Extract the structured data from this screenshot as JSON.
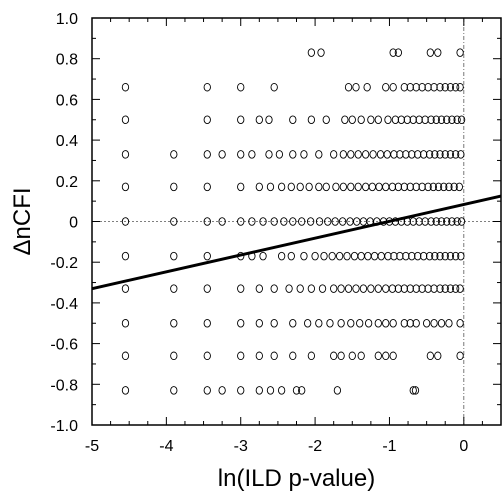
{
  "chart_data": {
    "type": "scatter",
    "xlabel": "ln(ILD p-value)",
    "ylabel": "ΔnCFI",
    "xlim": [
      -5,
      0.5
    ],
    "ylim": [
      -1.0,
      1.0
    ],
    "x_ticks": [
      "-5",
      "-4",
      "-3",
      "-2",
      "-1",
      "0"
    ],
    "y_ticks": [
      "1.0",
      "0.8",
      "0.6",
      "0.4",
      "0.2",
      "0",
      "-0.2",
      "-0.4",
      "-0.6",
      "-0.8",
      "-1.0"
    ],
    "reference_lines": {
      "horizontal_y": 0,
      "vertical_x": 0
    },
    "regression_line": {
      "x": [
        -5,
        0.5
      ],
      "y": [
        -0.33,
        0.125
      ]
    },
    "points": [
      {
        "x": -2.05,
        "y": 0.83
      },
      {
        "x": -1.92,
        "y": 0.83
      },
      {
        "x": -0.95,
        "y": 0.83
      },
      {
        "x": -0.88,
        "y": 0.83
      },
      {
        "x": -0.45,
        "y": 0.83
      },
      {
        "x": -0.35,
        "y": 0.83
      },
      {
        "x": -0.05,
        "y": 0.83
      },
      {
        "x": -4.55,
        "y": 0.66
      },
      {
        "x": -3.45,
        "y": 0.66
      },
      {
        "x": -3.0,
        "y": 0.66
      },
      {
        "x": -2.55,
        "y": 0.66
      },
      {
        "x": -1.55,
        "y": 0.66
      },
      {
        "x": -1.45,
        "y": 0.66
      },
      {
        "x": -1.3,
        "y": 0.66
      },
      {
        "x": -1.05,
        "y": 0.66
      },
      {
        "x": -0.95,
        "y": 0.66
      },
      {
        "x": -0.8,
        "y": 0.66
      },
      {
        "x": -0.72,
        "y": 0.66
      },
      {
        "x": -0.64,
        "y": 0.66
      },
      {
        "x": -0.56,
        "y": 0.66
      },
      {
        "x": -0.48,
        "y": 0.66
      },
      {
        "x": -0.4,
        "y": 0.66
      },
      {
        "x": -0.32,
        "y": 0.66
      },
      {
        "x": -0.25,
        "y": 0.66
      },
      {
        "x": -0.18,
        "y": 0.66
      },
      {
        "x": -0.11,
        "y": 0.66
      },
      {
        "x": -0.05,
        "y": 0.66
      },
      {
        "x": -4.55,
        "y": 0.5
      },
      {
        "x": -3.45,
        "y": 0.5
      },
      {
        "x": -3.0,
        "y": 0.5
      },
      {
        "x": -2.75,
        "y": 0.5
      },
      {
        "x": -2.62,
        "y": 0.5
      },
      {
        "x": -2.3,
        "y": 0.5
      },
      {
        "x": -2.05,
        "y": 0.5
      },
      {
        "x": -1.85,
        "y": 0.5
      },
      {
        "x": -1.6,
        "y": 0.5
      },
      {
        "x": -1.5,
        "y": 0.5
      },
      {
        "x": -1.38,
        "y": 0.5
      },
      {
        "x": -1.25,
        "y": 0.5
      },
      {
        "x": -1.15,
        "y": 0.5
      },
      {
        "x": -1.02,
        "y": 0.5
      },
      {
        "x": -0.92,
        "y": 0.5
      },
      {
        "x": -0.84,
        "y": 0.5
      },
      {
        "x": -0.76,
        "y": 0.5
      },
      {
        "x": -0.68,
        "y": 0.5
      },
      {
        "x": -0.6,
        "y": 0.5
      },
      {
        "x": -0.52,
        "y": 0.5
      },
      {
        "x": -0.44,
        "y": 0.5
      },
      {
        "x": -0.37,
        "y": 0.5
      },
      {
        "x": -0.3,
        "y": 0.5
      },
      {
        "x": -0.23,
        "y": 0.5
      },
      {
        "x": -0.16,
        "y": 0.5
      },
      {
        "x": -0.09,
        "y": 0.5
      },
      {
        "x": -0.03,
        "y": 0.5
      },
      {
        "x": -4.55,
        "y": 0.33
      },
      {
        "x": -3.9,
        "y": 0.33
      },
      {
        "x": -3.45,
        "y": 0.33
      },
      {
        "x": -3.25,
        "y": 0.33
      },
      {
        "x": -3.0,
        "y": 0.33
      },
      {
        "x": -2.85,
        "y": 0.33
      },
      {
        "x": -2.62,
        "y": 0.33
      },
      {
        "x": -2.48,
        "y": 0.33
      },
      {
        "x": -2.3,
        "y": 0.33
      },
      {
        "x": -2.15,
        "y": 0.33
      },
      {
        "x": -1.95,
        "y": 0.33
      },
      {
        "x": -1.75,
        "y": 0.33
      },
      {
        "x": -1.62,
        "y": 0.33
      },
      {
        "x": -1.52,
        "y": 0.33
      },
      {
        "x": -1.42,
        "y": 0.33
      },
      {
        "x": -1.32,
        "y": 0.33
      },
      {
        "x": -1.22,
        "y": 0.33
      },
      {
        "x": -1.12,
        "y": 0.33
      },
      {
        "x": -1.03,
        "y": 0.33
      },
      {
        "x": -0.94,
        "y": 0.33
      },
      {
        "x": -0.86,
        "y": 0.33
      },
      {
        "x": -0.78,
        "y": 0.33
      },
      {
        "x": -0.7,
        "y": 0.33
      },
      {
        "x": -0.62,
        "y": 0.33
      },
      {
        "x": -0.54,
        "y": 0.33
      },
      {
        "x": -0.46,
        "y": 0.33
      },
      {
        "x": -0.39,
        "y": 0.33
      },
      {
        "x": -0.32,
        "y": 0.33
      },
      {
        "x": -0.25,
        "y": 0.33
      },
      {
        "x": -0.18,
        "y": 0.33
      },
      {
        "x": -0.11,
        "y": 0.33
      },
      {
        "x": -0.04,
        "y": 0.33
      },
      {
        "x": -4.55,
        "y": 0.17
      },
      {
        "x": -3.9,
        "y": 0.17
      },
      {
        "x": -3.45,
        "y": 0.17
      },
      {
        "x": -3.0,
        "y": 0.17
      },
      {
        "x": -2.75,
        "y": 0.17
      },
      {
        "x": -2.6,
        "y": 0.17
      },
      {
        "x": -2.45,
        "y": 0.17
      },
      {
        "x": -2.32,
        "y": 0.17
      },
      {
        "x": -2.2,
        "y": 0.17
      },
      {
        "x": -2.08,
        "y": 0.17
      },
      {
        "x": -1.95,
        "y": 0.17
      },
      {
        "x": -1.85,
        "y": 0.17
      },
      {
        "x": -1.72,
        "y": 0.17
      },
      {
        "x": -1.62,
        "y": 0.17
      },
      {
        "x": -1.52,
        "y": 0.17
      },
      {
        "x": -1.42,
        "y": 0.17
      },
      {
        "x": -1.32,
        "y": 0.17
      },
      {
        "x": -1.23,
        "y": 0.17
      },
      {
        "x": -1.14,
        "y": 0.17
      },
      {
        "x": -1.05,
        "y": 0.17
      },
      {
        "x": -0.96,
        "y": 0.17
      },
      {
        "x": -0.88,
        "y": 0.17
      },
      {
        "x": -0.8,
        "y": 0.17
      },
      {
        "x": -0.72,
        "y": 0.17
      },
      {
        "x": -0.64,
        "y": 0.17
      },
      {
        "x": -0.56,
        "y": 0.17
      },
      {
        "x": -0.48,
        "y": 0.17
      },
      {
        "x": -0.41,
        "y": 0.17
      },
      {
        "x": -0.34,
        "y": 0.17
      },
      {
        "x": -0.27,
        "y": 0.17
      },
      {
        "x": -0.2,
        "y": 0.17
      },
      {
        "x": -0.13,
        "y": 0.17
      },
      {
        "x": -0.06,
        "y": 0.17
      },
      {
        "x": -4.55,
        "y": 0.0
      },
      {
        "x": -3.9,
        "y": 0.0
      },
      {
        "x": -3.45,
        "y": 0.0
      },
      {
        "x": -3.25,
        "y": 0.0
      },
      {
        "x": -3.0,
        "y": 0.0
      },
      {
        "x": -2.85,
        "y": 0.0
      },
      {
        "x": -2.7,
        "y": 0.0
      },
      {
        "x": -2.55,
        "y": 0.0
      },
      {
        "x": -2.42,
        "y": 0.0
      },
      {
        "x": -2.3,
        "y": 0.0
      },
      {
        "x": -2.18,
        "y": 0.0
      },
      {
        "x": -2.06,
        "y": 0.0
      },
      {
        "x": -1.94,
        "y": 0.0
      },
      {
        "x": -1.83,
        "y": 0.0
      },
      {
        "x": -1.73,
        "y": 0.0
      },
      {
        "x": -1.63,
        "y": 0.0
      },
      {
        "x": -1.53,
        "y": 0.0
      },
      {
        "x": -1.44,
        "y": 0.0
      },
      {
        "x": -1.35,
        "y": 0.0
      },
      {
        "x": -1.26,
        "y": 0.0
      },
      {
        "x": -1.17,
        "y": 0.0
      },
      {
        "x": -1.08,
        "y": 0.0
      },
      {
        "x": -1.0,
        "y": 0.0
      },
      {
        "x": -0.92,
        "y": 0.0
      },
      {
        "x": -0.84,
        "y": 0.0
      },
      {
        "x": -0.76,
        "y": 0.0
      },
      {
        "x": -0.68,
        "y": 0.0
      },
      {
        "x": -0.6,
        "y": 0.0
      },
      {
        "x": -0.52,
        "y": 0.0
      },
      {
        "x": -0.44,
        "y": 0.0
      },
      {
        "x": -0.37,
        "y": 0.0
      },
      {
        "x": -0.3,
        "y": 0.0
      },
      {
        "x": -0.23,
        "y": 0.0
      },
      {
        "x": -0.16,
        "y": 0.0
      },
      {
        "x": -0.09,
        "y": 0.0
      },
      {
        "x": -0.03,
        "y": 0.0
      },
      {
        "x": -4.55,
        "y": -0.17
      },
      {
        "x": -3.9,
        "y": -0.17
      },
      {
        "x": -3.45,
        "y": -0.17
      },
      {
        "x": -3.0,
        "y": -0.17
      },
      {
        "x": -2.85,
        "y": -0.17
      },
      {
        "x": -2.7,
        "y": -0.17
      },
      {
        "x": -2.45,
        "y": -0.17
      },
      {
        "x": -2.32,
        "y": -0.17
      },
      {
        "x": -2.15,
        "y": -0.17
      },
      {
        "x": -2.0,
        "y": -0.17
      },
      {
        "x": -1.88,
        "y": -0.17
      },
      {
        "x": -1.77,
        "y": -0.17
      },
      {
        "x": -1.67,
        "y": -0.17
      },
      {
        "x": -1.57,
        "y": -0.17
      },
      {
        "x": -1.47,
        "y": -0.17
      },
      {
        "x": -1.38,
        "y": -0.17
      },
      {
        "x": -1.29,
        "y": -0.17
      },
      {
        "x": -1.2,
        "y": -0.17
      },
      {
        "x": -1.11,
        "y": -0.17
      },
      {
        "x": -1.02,
        "y": -0.17
      },
      {
        "x": -0.94,
        "y": -0.17
      },
      {
        "x": -0.86,
        "y": -0.17
      },
      {
        "x": -0.78,
        "y": -0.17
      },
      {
        "x": -0.7,
        "y": -0.17
      },
      {
        "x": -0.62,
        "y": -0.17
      },
      {
        "x": -0.54,
        "y": -0.17
      },
      {
        "x": -0.46,
        "y": -0.17
      },
      {
        "x": -0.39,
        "y": -0.17
      },
      {
        "x": -0.32,
        "y": -0.17
      },
      {
        "x": -0.25,
        "y": -0.17
      },
      {
        "x": -0.18,
        "y": -0.17
      },
      {
        "x": -0.11,
        "y": -0.17
      },
      {
        "x": -0.04,
        "y": -0.17
      },
      {
        "x": -4.55,
        "y": -0.33
      },
      {
        "x": -3.9,
        "y": -0.33
      },
      {
        "x": -3.45,
        "y": -0.33
      },
      {
        "x": -3.0,
        "y": -0.33
      },
      {
        "x": -2.75,
        "y": -0.33
      },
      {
        "x": -2.55,
        "y": -0.33
      },
      {
        "x": -2.35,
        "y": -0.33
      },
      {
        "x": -2.2,
        "y": -0.33
      },
      {
        "x": -2.05,
        "y": -0.33
      },
      {
        "x": -1.9,
        "y": -0.33
      },
      {
        "x": -1.75,
        "y": -0.33
      },
      {
        "x": -1.65,
        "y": -0.33
      },
      {
        "x": -1.55,
        "y": -0.33
      },
      {
        "x": -1.45,
        "y": -0.33
      },
      {
        "x": -1.35,
        "y": -0.33
      },
      {
        "x": -1.25,
        "y": -0.33
      },
      {
        "x": -1.15,
        "y": -0.33
      },
      {
        "x": -1.05,
        "y": -0.33
      },
      {
        "x": -0.96,
        "y": -0.33
      },
      {
        "x": -0.88,
        "y": -0.33
      },
      {
        "x": -0.8,
        "y": -0.33
      },
      {
        "x": -0.72,
        "y": -0.33
      },
      {
        "x": -0.64,
        "y": -0.33
      },
      {
        "x": -0.56,
        "y": -0.33
      },
      {
        "x": -0.48,
        "y": -0.33
      },
      {
        "x": -0.4,
        "y": -0.33
      },
      {
        "x": -0.32,
        "y": -0.33
      },
      {
        "x": -0.25,
        "y": -0.33
      },
      {
        "x": -0.18,
        "y": -0.33
      },
      {
        "x": -0.11,
        "y": -0.33
      },
      {
        "x": -0.05,
        "y": -0.33
      },
      {
        "x": -4.55,
        "y": -0.5
      },
      {
        "x": -3.9,
        "y": -0.5
      },
      {
        "x": -3.45,
        "y": -0.5
      },
      {
        "x": -3.0,
        "y": -0.5
      },
      {
        "x": -2.75,
        "y": -0.5
      },
      {
        "x": -2.55,
        "y": -0.5
      },
      {
        "x": -2.3,
        "y": -0.5
      },
      {
        "x": -2.1,
        "y": -0.5
      },
      {
        "x": -1.95,
        "y": -0.5
      },
      {
        "x": -1.8,
        "y": -0.5
      },
      {
        "x": -1.65,
        "y": -0.5
      },
      {
        "x": -1.52,
        "y": -0.5
      },
      {
        "x": -1.4,
        "y": -0.5
      },
      {
        "x": -1.28,
        "y": -0.5
      },
      {
        "x": -1.15,
        "y": -0.5
      },
      {
        "x": -1.05,
        "y": -0.5
      },
      {
        "x": -0.95,
        "y": -0.5
      },
      {
        "x": -0.8,
        "y": -0.5
      },
      {
        "x": -0.72,
        "y": -0.5
      },
      {
        "x": -0.64,
        "y": -0.5
      },
      {
        "x": -0.5,
        "y": -0.5
      },
      {
        "x": -0.4,
        "y": -0.5
      },
      {
        "x": -0.3,
        "y": -0.5
      },
      {
        "x": -0.2,
        "y": -0.5
      },
      {
        "x": -0.05,
        "y": -0.5
      },
      {
        "x": -4.55,
        "y": -0.66
      },
      {
        "x": -3.9,
        "y": -0.66
      },
      {
        "x": -3.45,
        "y": -0.66
      },
      {
        "x": -3.0,
        "y": -0.66
      },
      {
        "x": -2.75,
        "y": -0.66
      },
      {
        "x": -2.55,
        "y": -0.66
      },
      {
        "x": -2.3,
        "y": -0.66
      },
      {
        "x": -2.05,
        "y": -0.66
      },
      {
        "x": -1.75,
        "y": -0.66
      },
      {
        "x": -1.65,
        "y": -0.66
      },
      {
        "x": -1.5,
        "y": -0.66
      },
      {
        "x": -1.38,
        "y": -0.66
      },
      {
        "x": -1.15,
        "y": -0.66
      },
      {
        "x": -1.05,
        "y": -0.66
      },
      {
        "x": -0.95,
        "y": -0.66
      },
      {
        "x": -0.45,
        "y": -0.66
      },
      {
        "x": -0.35,
        "y": -0.66
      },
      {
        "x": -0.05,
        "y": -0.66
      },
      {
        "x": -4.55,
        "y": -0.83
      },
      {
        "x": -3.9,
        "y": -0.83
      },
      {
        "x": -3.45,
        "y": -0.83
      },
      {
        "x": -3.25,
        "y": -0.83
      },
      {
        "x": -3.0,
        "y": -0.83
      },
      {
        "x": -2.75,
        "y": -0.83
      },
      {
        "x": -2.6,
        "y": -0.83
      },
      {
        "x": -2.45,
        "y": -0.83
      },
      {
        "x": -2.25,
        "y": -0.83
      },
      {
        "x": -2.18,
        "y": -0.83
      },
      {
        "x": -1.7,
        "y": -0.83
      },
      {
        "x": -0.68,
        "y": -0.83
      },
      {
        "x": -0.65,
        "y": -0.83
      }
    ]
  }
}
